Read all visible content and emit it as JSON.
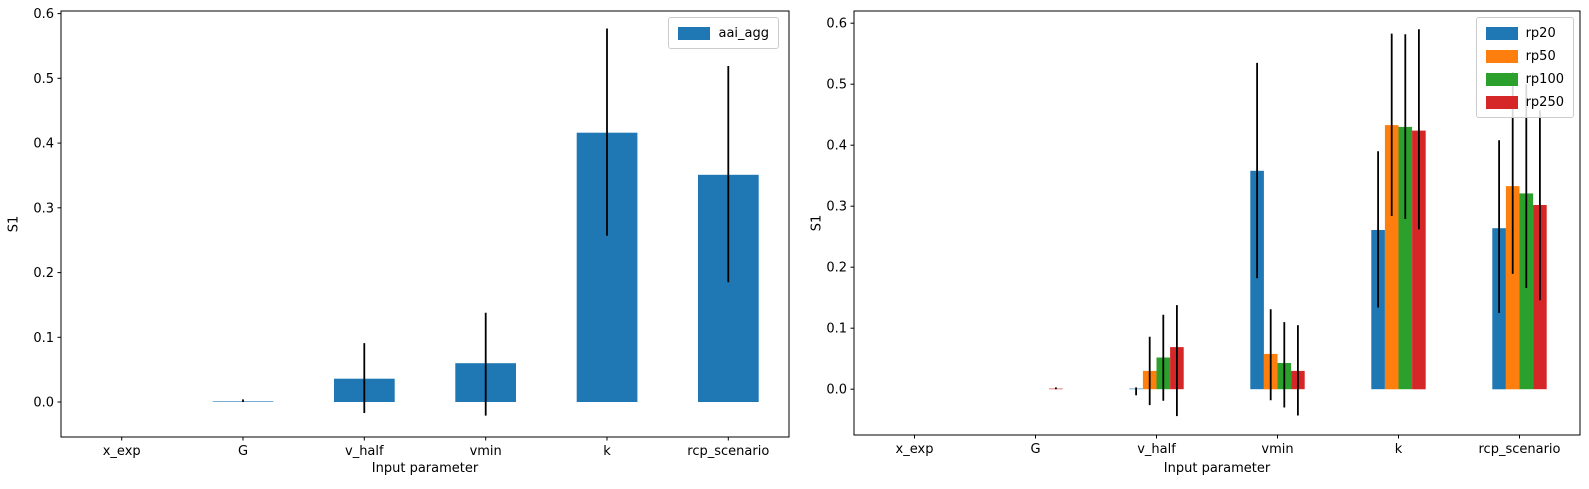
{
  "chart_data": [
    {
      "id": "aai_agg_sensitivity",
      "type": "bar",
      "title": "",
      "xlabel": "Input parameter",
      "ylabel": "S1",
      "categories": [
        "x_exp",
        "G",
        "v_half",
        "vmin",
        "k",
        "rcp_scenario"
      ],
      "ylim": [
        -0.054,
        0.604
      ],
      "yticks": [
        0.0,
        0.1,
        0.2,
        0.3,
        0.4,
        0.5,
        0.6
      ],
      "grid": false,
      "legend_position": "upper right",
      "bar_width": 0.5,
      "error_color": "#000000",
      "series": [
        {
          "name": "aai_agg",
          "color": "#1f77b4",
          "values": [
            0.0,
            0.001,
            0.036,
            0.06,
            0.416,
            0.351
          ],
          "err_low": [
            null,
            0.0,
            -0.017,
            -0.021,
            0.257,
            0.185
          ],
          "err_high": [
            null,
            0.004,
            0.091,
            0.138,
            0.577,
            0.519
          ]
        }
      ]
    },
    {
      "id": "rp_sensitivity",
      "type": "bar",
      "title": "",
      "xlabel": "Input parameter",
      "ylabel": "S1",
      "categories": [
        "x_exp",
        "G",
        "v_half",
        "vmin",
        "k",
        "rcp_scenario"
      ],
      "ylim": [
        -0.075,
        0.62
      ],
      "yticks": [
        0.0,
        0.1,
        0.2,
        0.3,
        0.4,
        0.5,
        0.6
      ],
      "grid": false,
      "legend_position": "upper right",
      "bar_width": 0.45,
      "error_color": "#000000",
      "series": [
        {
          "name": "rp20",
          "color": "#1f77b4",
          "values": [
            0.0,
            0.0,
            0.001,
            0.358,
            0.261,
            0.264
          ],
          "err_low": [
            null,
            null,
            -0.01,
            0.182,
            0.134,
            0.125
          ],
          "err_high": [
            null,
            null,
            0.003,
            0.535,
            0.39,
            0.408
          ]
        },
        {
          "name": "rp50",
          "color": "#ff7f0e",
          "values": [
            0.0,
            0.0,
            0.03,
            0.058,
            0.433,
            0.333
          ],
          "err_low": [
            null,
            null,
            -0.026,
            -0.018,
            0.284,
            0.189
          ],
          "err_high": [
            null,
            null,
            0.086,
            0.131,
            0.583,
            0.52
          ]
        },
        {
          "name": "rp100",
          "color": "#2ca02c",
          "values": [
            0.0,
            0.0,
            0.052,
            0.043,
            0.43,
            0.321
          ],
          "err_low": [
            null,
            null,
            -0.019,
            -0.03,
            0.279,
            0.166
          ],
          "err_high": [
            null,
            null,
            0.122,
            0.11,
            0.582,
            0.5
          ]
        },
        {
          "name": "rp250",
          "color": "#d62728",
          "values": [
            0.0,
            0.001,
            0.069,
            0.03,
            0.424,
            0.302
          ],
          "err_low": [
            null,
            0.0,
            -0.044,
            -0.043,
            0.262,
            0.146
          ],
          "err_high": [
            null,
            0.003,
            0.138,
            0.105,
            0.59,
            0.457
          ]
        }
      ]
    }
  ]
}
